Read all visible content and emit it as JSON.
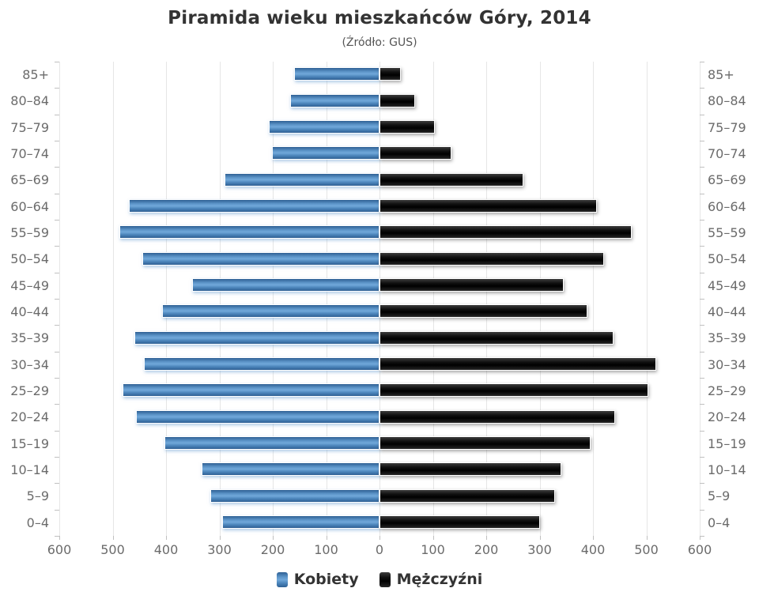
{
  "chart_data": {
    "type": "bar",
    "variant": "population-pyramid",
    "title": "Piramida wieku mieszkańców Góry, 2014",
    "subtitle": "(Źródło: GUS)",
    "categories_top_to_bottom": [
      "85+",
      "80–84",
      "75–79",
      "70–74",
      "65–69",
      "60–64",
      "55–59",
      "50–54",
      "45–49",
      "40–44",
      "35–39",
      "30–34",
      "25–29",
      "20–24",
      "15–19",
      "10–14",
      "5–9",
      "0–4"
    ],
    "series": [
      {
        "name": "Kobiety",
        "side": "left",
        "color": "#4e86bb",
        "values": [
          160,
          168,
          208,
          202,
          290,
          470,
          487,
          444,
          351,
          408,
          459,
          441,
          482,
          457,
          403,
          334,
          317,
          295
        ]
      },
      {
        "name": "Mężczyźni",
        "side": "right",
        "color": "#111111",
        "values": [
          40,
          66,
          103,
          135,
          270,
          408,
          473,
          421,
          345,
          389,
          438,
          518,
          503,
          441,
          396,
          340,
          329,
          300
        ]
      }
    ],
    "x_axis_ticks": [
      600,
      500,
      400,
      300,
      200,
      100,
      0,
      100,
      200,
      300,
      400,
      500,
      600
    ],
    "xlim_each_side": [
      0,
      600
    ],
    "grid": true,
    "legend_position": "bottom",
    "colors": {
      "female_gradient": [
        "#2e6094",
        "#5d95c9",
        "#71a8da",
        "#4d86bc",
        "#2e6094"
      ],
      "male_gradient": [
        "#3d3d3d",
        "#101010",
        "#000000",
        "#262626"
      ],
      "gridline": "#e6e6e6",
      "axis_label": "#6b6b6b",
      "title_text": "#333333"
    }
  }
}
